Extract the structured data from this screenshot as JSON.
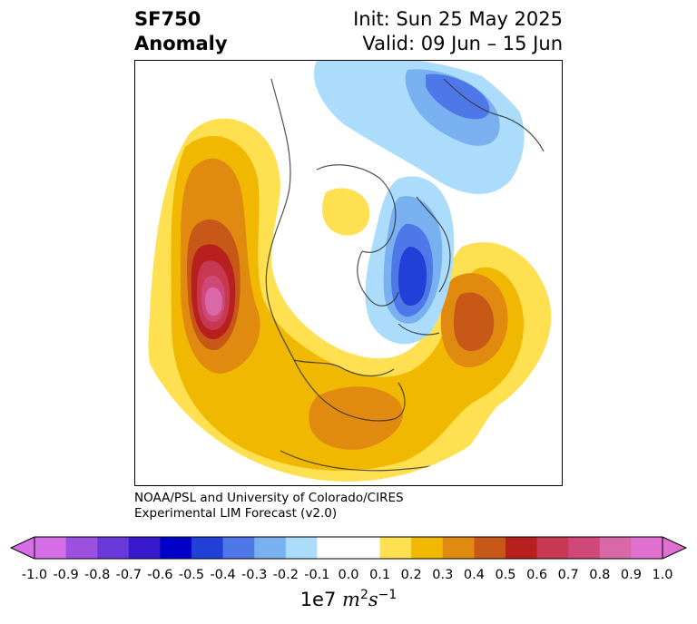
{
  "title": {
    "line1": "SF750",
    "line2": "Anomaly",
    "init": "Init: Sun 25 May 2025",
    "valid": "Valid: 09 Jun – 15 Jun"
  },
  "credit": {
    "line1": "NOAA/PSL and University of Colorado/CIRES",
    "line2": "Experimental LIM Forecast (v2.0)"
  },
  "colorbar": {
    "units_base": "1e7",
    "units_m": "m",
    "units_m_exp": "2",
    "units_s": "s",
    "units_s_exp": "−1",
    "ticks": [
      "-1.0",
      "-0.9",
      "-0.8",
      "-0.7",
      "-0.6",
      "-0.5",
      "-0.4",
      "-0.3",
      "-0.2",
      "-0.1",
      "0.0",
      "0.1",
      "0.2",
      "0.3",
      "0.4",
      "0.5",
      "0.6",
      "0.7",
      "0.8",
      "0.9",
      "1.0"
    ],
    "colors": [
      "#d66ee8",
      "#9c50e0",
      "#6a38d8",
      "#3818cc",
      "#0000c8",
      "#2040d8",
      "#4e78e8",
      "#78b0f0",
      "#acdcfc",
      "#ffffff",
      "#ffffff",
      "#ffe050",
      "#f0b800",
      "#e08a10",
      "#c85818",
      "#b82020",
      "#c83850",
      "#d04878",
      "#d868a8",
      "#e070d0"
    ],
    "extend_min_color": "#d66ee8",
    "extend_max_color": "#e070d0"
  },
  "map": {
    "projection": "north polar stereographic",
    "region": "North America and Northern Hemisphere",
    "features": [
      {
        "name": "positive anomaly over eastern Pacific",
        "peak": 0.8
      },
      {
        "name": "positive anomaly over eastern United States",
        "peak": 0.4
      },
      {
        "name": "positive anomaly over North Atlantic",
        "peak": 0.4
      },
      {
        "name": "negative anomaly over northern Atlantic / Greenland",
        "peak": -0.5
      },
      {
        "name": "negative anomaly over Siberia",
        "peak": -0.4
      },
      {
        "name": "positive anomaly over Arctic Canada",
        "peak": 0.1
      }
    ]
  }
}
